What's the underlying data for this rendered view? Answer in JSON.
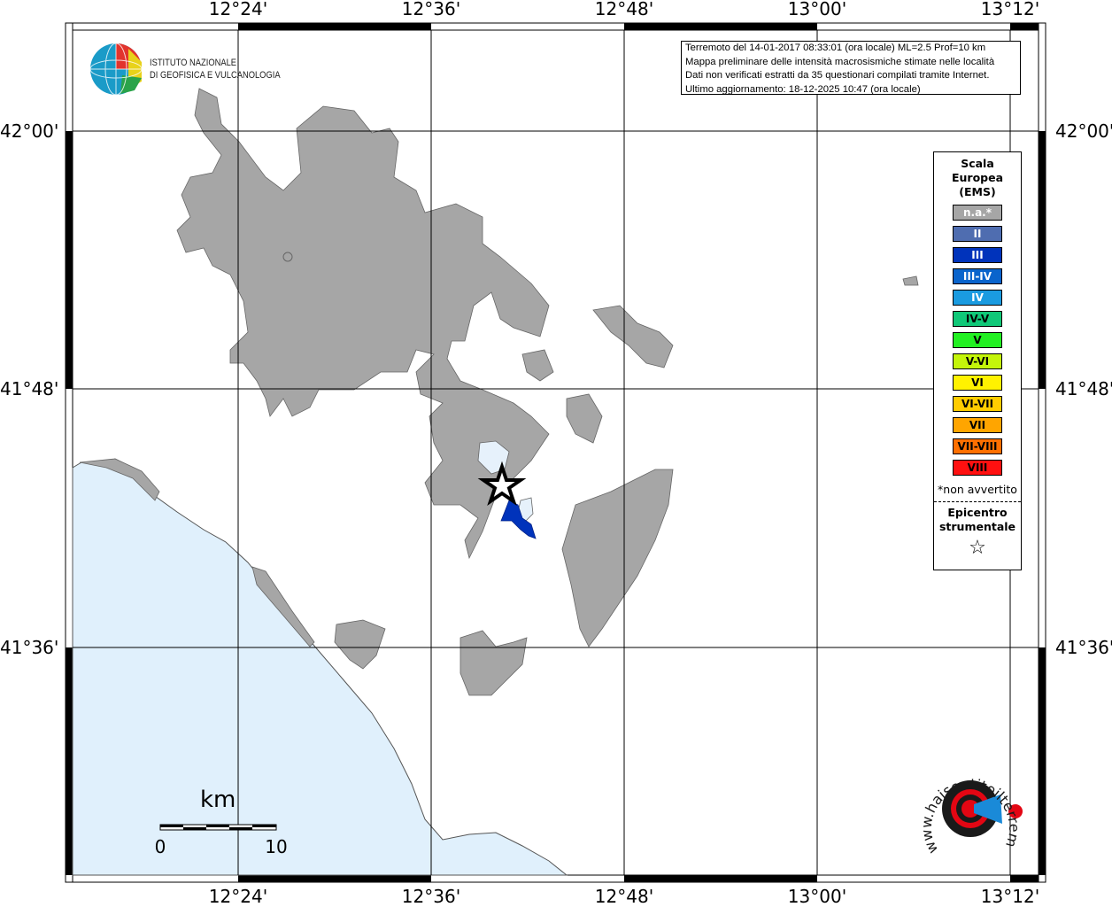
{
  "map": {
    "longitude_ticks": [
      "12°24'",
      "12°36'",
      "12°48'",
      "13°00'",
      "13°12'"
    ],
    "latitude_ticks": [
      "42°00'",
      "41°48'",
      "41°36'"
    ],
    "colors": {
      "land": "#a6a6a6",
      "sea": "#e0f0fc",
      "intensity_light": "#e6f1fb",
      "intensity_III": "#0033bb"
    }
  },
  "info": {
    "lines": [
      "Terremoto del 14-01-2017 08:33:01 (ora locale) ML=2.5 Prof=10 km",
      "Mappa preliminare delle intensità macrosismiche stimate nelle località",
      "Dati non verificati estratti da 35 questionari compilati tramite Internet.",
      "Ultimo aggiornamento: 18-12-2025 10:47 (ora locale)"
    ]
  },
  "logo": {
    "ingv_line1": "ISTITUTO NAZIONALE",
    "ingv_line2": "DI GEOFISICA E VULCANOLOGIA",
    "hsit": "www.haisentitoilterremoto.it"
  },
  "legend": {
    "title": [
      "Scala",
      "Europea",
      "(EMS)"
    ],
    "items": [
      {
        "label": "n.a.*",
        "color": "#a6a6a6",
        "text": "#ffffff"
      },
      {
        "label": "II",
        "color": "#4f6db0",
        "text": "#ffffff"
      },
      {
        "label": "III",
        "color": "#0033bb",
        "text": "#ffffff"
      },
      {
        "label": "III-IV",
        "color": "#0a64cc",
        "text": "#ffffff"
      },
      {
        "label": "IV",
        "color": "#1a9be0",
        "text": "#ffffff"
      },
      {
        "label": "IV-V",
        "color": "#10c878",
        "text": "#000000"
      },
      {
        "label": "V",
        "color": "#22f022",
        "text": "#000000"
      },
      {
        "label": "V-VI",
        "color": "#c4f50a",
        "text": "#000000"
      },
      {
        "label": "VI",
        "color": "#fff200",
        "text": "#000000"
      },
      {
        "label": "VI-VII",
        "color": "#ffcc00",
        "text": "#000000"
      },
      {
        "label": "VII",
        "color": "#ffa500",
        "text": "#000000"
      },
      {
        "label": "VII-VIII",
        "color": "#ff7000",
        "text": "#000000"
      },
      {
        "label": "VIII",
        "color": "#ff1010",
        "text": "#000000"
      }
    ],
    "note": "*non avvertito",
    "epicenter_title": [
      "Epicentro",
      "strumentale"
    ],
    "epicenter_symbol": "☆"
  },
  "scale_bar": {
    "unit": "km",
    "min": "0",
    "max": "10"
  }
}
